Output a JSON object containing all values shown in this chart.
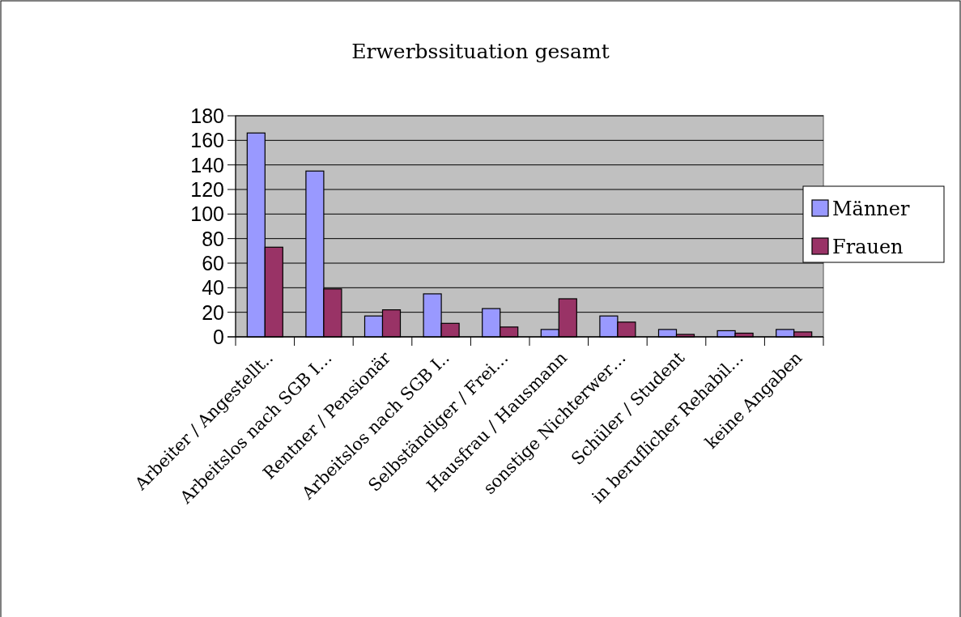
{
  "chart_data": {
    "type": "bar",
    "title": "Erwerbssituation gesamt",
    "categories": [
      "Arbeiter / Angestellt..",
      "Arbeitslos nach SGB I…",
      "Rentner / Pensionär",
      "Arbeitslos nach SGB I..",
      "Selbständiger / Frei…",
      "Hausfrau / Hausmann",
      "sonstige Nichterwer…",
      "Schüler / Student",
      "in beruflicher Rehabil…",
      "keine Angaben"
    ],
    "series": [
      {
        "name": "Männer",
        "color": "#9999ff",
        "values": [
          166,
          135,
          17,
          35,
          23,
          6,
          17,
          6,
          5,
          6
        ]
      },
      {
        "name": "Frauen",
        "color": "#993366",
        "values": [
          73,
          39,
          22,
          11,
          8,
          31,
          12,
          2,
          3,
          4
        ]
      }
    ],
    "ylim": [
      0,
      180
    ],
    "yticks": [
      0,
      20,
      40,
      60,
      80,
      100,
      120,
      140,
      160,
      180
    ],
    "grid": "y",
    "legend": "right"
  }
}
